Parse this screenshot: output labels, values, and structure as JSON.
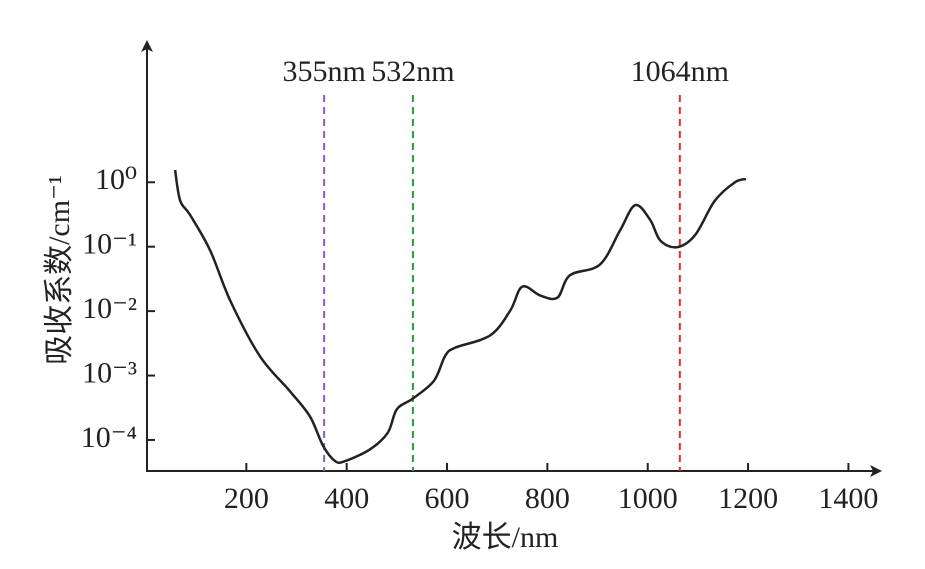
{
  "chart_data": {
    "type": "line",
    "x_label": "波长/nm",
    "y_label": "吸收系数/cm⁻¹",
    "log_y": true,
    "xlim": [
      0,
      1450
    ],
    "ylim": [
      3.3e-05,
      135
    ],
    "xticks": [
      200,
      400,
      600,
      800,
      1000,
      1200,
      1400
    ],
    "yticks": [
      {
        "value": 1,
        "label": "10⁰"
      },
      {
        "value": 0.1,
        "label": "10⁻¹"
      },
      {
        "value": 0.01,
        "label": "10⁻²"
      },
      {
        "value": 0.001,
        "label": "10⁻³"
      },
      {
        "value": 0.0001,
        "label": "10⁻⁴"
      }
    ],
    "markers": [
      {
        "value": 355,
        "label": "355nm",
        "color": "#8e5bbf"
      },
      {
        "value": 532,
        "label": "532nm",
        "color": "#2e9a3e"
      },
      {
        "value": 1064,
        "label": "1064nm",
        "color": "#e0302a"
      }
    ],
    "series": [
      {
        "color": "#222222",
        "x": [
          58,
          68,
          88,
          128,
          168,
          227,
          287,
          327,
          353,
          377,
          397,
          447,
          482,
          500,
          532,
          574,
          596,
          616,
          686,
          726,
          750,
          786,
          820,
          845,
          905,
          945,
          975,
          1005,
          1025,
          1058,
          1094,
          1134,
          1174,
          1196
        ],
        "values": [
          1.55,
          0.52,
          0.31,
          0.087,
          0.0145,
          0.002,
          0.00057,
          0.00023,
          8.1e-05,
          4.7e-05,
          4.7e-05,
          7.2e-05,
          0.00013,
          0.0003,
          0.00044,
          0.00083,
          0.002,
          0.0027,
          0.0042,
          0.0102,
          0.024,
          0.0174,
          0.0162,
          0.036,
          0.053,
          0.18,
          0.44,
          0.26,
          0.125,
          0.098,
          0.15,
          0.52,
          1.0,
          1.12
        ]
      }
    ]
  }
}
